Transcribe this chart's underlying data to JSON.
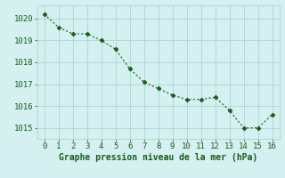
{
  "x": [
    0,
    1,
    2,
    3,
    4,
    5,
    6,
    7,
    8,
    9,
    10,
    11,
    12,
    13,
    14,
    15,
    16
  ],
  "y": [
    1020.2,
    1019.6,
    1019.3,
    1019.3,
    1019.0,
    1018.6,
    1017.7,
    1017.1,
    1016.8,
    1016.5,
    1016.3,
    1016.3,
    1016.4,
    1015.8,
    1015.0,
    1015.0,
    1015.6
  ],
  "line_color": "#1a5c1a",
  "marker_color": "#1a5c1a",
  "bg_color": "#d4f0f0",
  "grid_color": "#b0d4d4",
  "xlabel": "Graphe pression niveau de la mer (hPa)",
  "xlabel_color": "#1a5c1a",
  "xlabel_fontsize": 7,
  "tick_color": "#1a5c1a",
  "tick_fontsize": 6.5,
  "ylim": [
    1014.5,
    1020.6
  ],
  "xlim": [
    -0.5,
    16.5
  ],
  "yticks": [
    1015,
    1016,
    1017,
    1018,
    1019,
    1020
  ],
  "xticks": [
    0,
    1,
    2,
    3,
    4,
    5,
    6,
    7,
    8,
    9,
    10,
    11,
    12,
    13,
    14,
    15,
    16
  ]
}
